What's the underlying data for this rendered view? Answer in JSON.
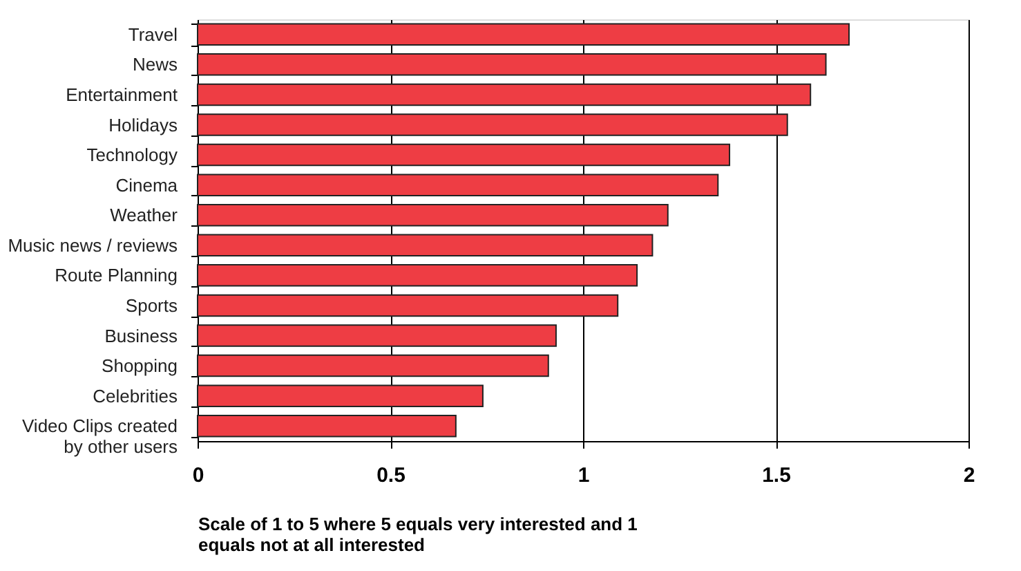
{
  "chart_data": {
    "type": "bar",
    "orientation": "horizontal",
    "xlabel": "Scale of 1 to 5 where 5 equals very interested and 1 equals not at all interested",
    "categories": [
      "Travel",
      "News",
      "Entertainment",
      "Holidays",
      "Technology",
      "Cinema",
      "Weather",
      "Music news / reviews",
      "Route Planning",
      "Sports",
      "Business",
      "Shopping",
      "Celebrities",
      "Video Clips created by other users"
    ],
    "values": [
      1.69,
      1.63,
      1.59,
      1.53,
      1.38,
      1.35,
      1.22,
      1.18,
      1.14,
      1.09,
      0.93,
      0.91,
      0.74,
      0.67
    ],
    "color": "#ee3d44",
    "xlim": [
      0,
      2
    ],
    "xticks": [
      0,
      0.5,
      1,
      1.5,
      2
    ],
    "grid": "x"
  }
}
